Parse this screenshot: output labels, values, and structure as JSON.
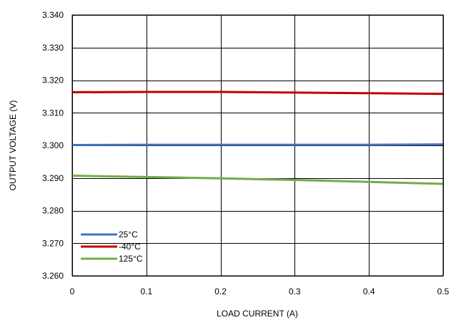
{
  "chart_data": {
    "type": "line",
    "title": "",
    "xlabel": "LOAD CURRENT (A)",
    "ylabel": "OUTPUT VOLTAGE (V)",
    "xlim": [
      0,
      0.5
    ],
    "ylim": [
      3.26,
      3.34
    ],
    "x_ticks": [
      "0",
      "0.1",
      "0.2",
      "0.3",
      "0.4",
      "0.5"
    ],
    "x_tick_values": [
      0,
      0.1,
      0.2,
      0.3,
      0.4,
      0.5
    ],
    "y_ticks": [
      "3.260",
      "3.270",
      "3.280",
      "3.290",
      "3.300",
      "3.310",
      "3.320",
      "3.330",
      "3.340"
    ],
    "y_tick_values": [
      3.26,
      3.27,
      3.28,
      3.29,
      3.3,
      3.31,
      3.32,
      3.33,
      3.34
    ],
    "grid": true,
    "legend_position": "bottom-left",
    "series": [
      {
        "name": "25°C",
        "color": "#4472C4",
        "x": [
          0,
          0.1,
          0.2,
          0.3,
          0.4,
          0.5
        ],
        "y": [
          3.3001,
          3.3002,
          3.3002,
          3.3002,
          3.3002,
          3.3003
        ]
      },
      {
        "name": "-40°C",
        "color": "#C00000",
        "x": [
          0,
          0.1,
          0.2,
          0.3,
          0.4,
          0.5
        ],
        "y": [
          3.3163,
          3.3164,
          3.3164,
          3.3162,
          3.316,
          3.3158
        ]
      },
      {
        "name": "125°C",
        "color": "#70AD47",
        "x": [
          0,
          0.1,
          0.2,
          0.3,
          0.4,
          0.5
        ],
        "y": [
          3.2907,
          3.2903,
          3.2899,
          3.2894,
          3.2888,
          3.2882
        ]
      }
    ]
  }
}
